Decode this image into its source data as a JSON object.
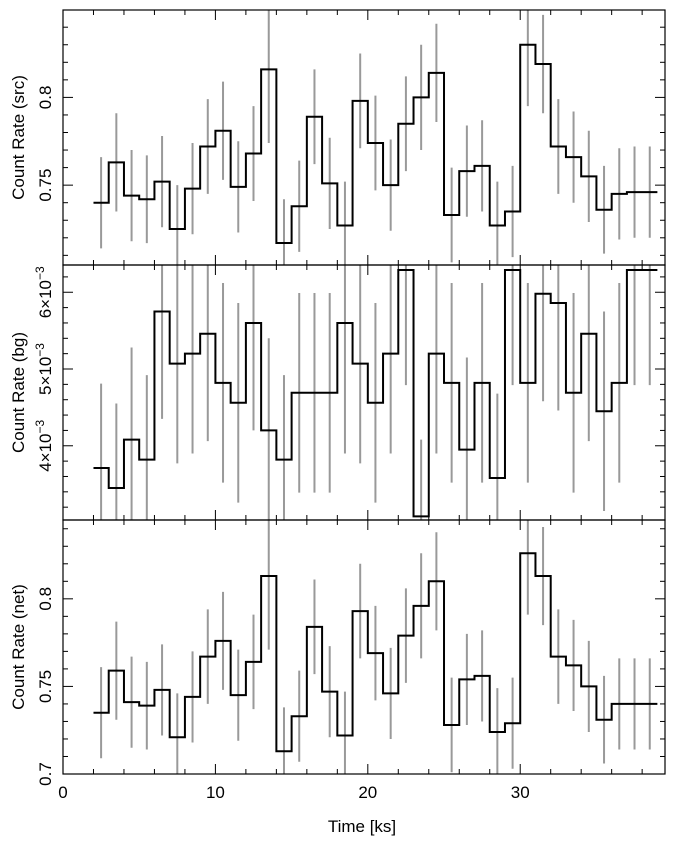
{
  "figure": {
    "xlabel": "Time [ks]",
    "xlim": [
      0,
      39.5
    ],
    "x_ticks": [
      0,
      10,
      20,
      30
    ],
    "x_tick_labels": [
      "0",
      "10",
      "20",
      "30"
    ],
    "line_color": "#000000",
    "error_color": "#999999"
  },
  "chart_data": [
    {
      "type": "line",
      "panel": "src",
      "ylabel": "Count Rate (src)",
      "ylim": [
        0.7045,
        0.8498
      ],
      "y_ticks": [
        0.75,
        0.8
      ],
      "y_tick_labels": [
        "0.75",
        "0.8"
      ],
      "bin_width": 1.0,
      "x": [
        2.5,
        3.5,
        4.5,
        5.5,
        6.5,
        7.5,
        8.5,
        9.5,
        10.5,
        11.5,
        12.5,
        13.5,
        14.5,
        15.5,
        16.5,
        17.5,
        18.5,
        19.5,
        20.5,
        21.5,
        22.5,
        23.5,
        24.5,
        25.5,
        26.5,
        27.5,
        28.5,
        29.5,
        30.5,
        31.5,
        32.5,
        33.5,
        34.5,
        35.5,
        36.5,
        37.5,
        38.5
      ],
      "y": [
        0.74,
        0.763,
        0.744,
        0.742,
        0.752,
        0.725,
        0.748,
        0.772,
        0.781,
        0.749,
        0.768,
        0.816,
        0.717,
        0.738,
        0.789,
        0.751,
        0.727,
        0.798,
        0.774,
        0.75,
        0.785,
        0.8,
        0.814,
        0.733,
        0.758,
        0.761,
        0.727,
        0.735,
        0.83,
        0.819,
        0.772,
        0.766,
        0.755,
        0.736,
        0.745,
        0.746,
        0.746
      ],
      "err": [
        0.026,
        0.028,
        0.026,
        0.025,
        0.026,
        0.025,
        0.026,
        0.027,
        0.028,
        0.026,
        0.027,
        0.042,
        0.025,
        0.026,
        0.027,
        0.026,
        0.025,
        0.027,
        0.027,
        0.026,
        0.027,
        0.03,
        0.028,
        0.027,
        0.026,
        0.026,
        0.025,
        0.026,
        0.035,
        0.028,
        0.027,
        0.026,
        0.026,
        0.025,
        0.026,
        0.026,
        0.026
      ]
    },
    {
      "type": "line",
      "panel": "bg",
      "ylabel": "Count Rate (bg)",
      "ylim": [
        0.003033,
        0.006355
      ],
      "y_ticks": [
        0.004,
        0.005,
        0.006
      ],
      "y_tick_labels": [
        {
          "mantissa": "4",
          "exponent": "−3"
        },
        {
          "mantissa": "5",
          "exponent": "−3"
        },
        {
          "mantissa": "6",
          "exponent": "−3"
        }
      ],
      "y_offset_label": "10⁻³",
      "bin_width": 1.0,
      "x": [
        2.5,
        3.5,
        4.5,
        5.5,
        6.5,
        7.5,
        8.5,
        9.5,
        10.5,
        11.5,
        12.5,
        13.5,
        14.5,
        15.5,
        16.5,
        17.5,
        18.5,
        19.5,
        20.5,
        21.5,
        22.5,
        23.5,
        24.5,
        25.5,
        26.5,
        27.5,
        28.5,
        29.5,
        30.5,
        31.5,
        32.5,
        33.5,
        34.5,
        35.5,
        36.5,
        37.5,
        38.5
      ],
      "y": [
        0.00371,
        0.00345,
        0.00408,
        0.00382,
        0.00575,
        0.00507,
        0.0052,
        0.00546,
        0.00482,
        0.00456,
        0.0056,
        0.0042,
        0.00382,
        0.00469,
        0.00469,
        0.00469,
        0.0056,
        0.00507,
        0.00456,
        0.0052,
        0.00629,
        0.00308,
        0.0052,
        0.00482,
        0.00395,
        0.00482,
        0.00358,
        0.00629,
        0.00482,
        0.00598,
        0.00586,
        0.00469,
        0.00546,
        0.00445,
        0.00482,
        0.00629,
        0.00629
      ],
      "err": [
        0.0011,
        0.0011,
        0.0012,
        0.0011,
        0.0014,
        0.0013,
        0.0013,
        0.0014,
        0.0013,
        0.0013,
        0.0014,
        0.0012,
        0.0011,
        0.0013,
        0.0013,
        0.0013,
        0.0017,
        0.0013,
        0.0013,
        0.0013,
        0.0015,
        0.001,
        0.0013,
        0.0013,
        0.0012,
        0.0013,
        0.0011,
        0.0015,
        0.0013,
        0.0014,
        0.0014,
        0.0013,
        0.0014,
        0.0013,
        0.0013,
        0.0015,
        0.0015
      ]
    },
    {
      "type": "line",
      "panel": "net",
      "ylabel": "Count Rate (net)",
      "ylim": [
        0.7,
        0.845
      ],
      "y_ticks": [
        0.7,
        0.75,
        0.8
      ],
      "y_tick_labels": [
        "0.7",
        "0.75",
        "0.8"
      ],
      "bin_width": 1.0,
      "x": [
        2.5,
        3.5,
        4.5,
        5.5,
        6.5,
        7.5,
        8.5,
        9.5,
        10.5,
        11.5,
        12.5,
        13.5,
        14.5,
        15.5,
        16.5,
        17.5,
        18.5,
        19.5,
        20.5,
        21.5,
        22.5,
        23.5,
        24.5,
        25.5,
        26.5,
        27.5,
        28.5,
        29.5,
        30.5,
        31.5,
        32.5,
        33.5,
        34.5,
        35.5,
        36.5,
        37.5,
        38.5
      ],
      "y": [
        0.735,
        0.759,
        0.741,
        0.739,
        0.748,
        0.721,
        0.744,
        0.767,
        0.776,
        0.745,
        0.764,
        0.813,
        0.713,
        0.733,
        0.784,
        0.747,
        0.722,
        0.793,
        0.769,
        0.746,
        0.779,
        0.796,
        0.81,
        0.728,
        0.754,
        0.756,
        0.724,
        0.729,
        0.826,
        0.813,
        0.767,
        0.762,
        0.75,
        0.731,
        0.74,
        0.74,
        0.74
      ],
      "err": [
        0.026,
        0.028,
        0.026,
        0.025,
        0.026,
        0.025,
        0.026,
        0.027,
        0.028,
        0.026,
        0.027,
        0.042,
        0.025,
        0.026,
        0.027,
        0.026,
        0.025,
        0.027,
        0.027,
        0.026,
        0.027,
        0.03,
        0.028,
        0.027,
        0.026,
        0.026,
        0.025,
        0.026,
        0.035,
        0.028,
        0.027,
        0.026,
        0.026,
        0.025,
        0.026,
        0.026,
        0.026
      ]
    }
  ]
}
